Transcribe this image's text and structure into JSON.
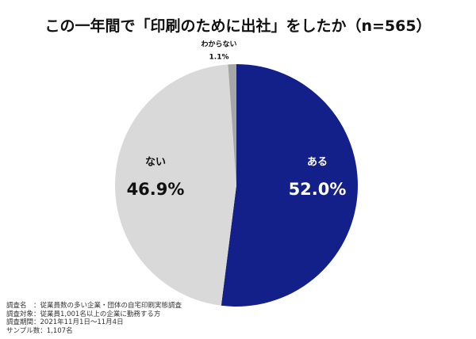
{
  "chart_data": {
    "type": "pie",
    "title": "この一年間で「印刷のために出社」をしたか（n=565）",
    "start_angle": "12 o'clock",
    "direction": "clockwise",
    "slices": [
      {
        "label": "ある",
        "value": 52.0,
        "value_label": "52.0%",
        "color": "#14208a"
      },
      {
        "label": "ない",
        "value": 46.9,
        "value_label": "46.9%",
        "color": "#d9d9d9"
      },
      {
        "label": "わからない",
        "value": 1.1,
        "value_label": "1.1%",
        "color": "#a6a6a6"
      }
    ]
  },
  "notes": [
    "調査名　：従業員数の多い企業・団体の自宅印刷実態調査",
    "調査対象：従業員1,001名以上の企業に勤務する方",
    "調査期間：2021年11月1日〜11月4日",
    "サンプル数：1,107名"
  ]
}
